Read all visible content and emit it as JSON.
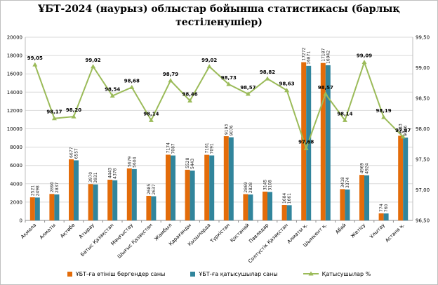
{
  "chart_data": {
    "type": "bar",
    "title_line1": "ҰБТ-2024 (наурыз) облыстар бойынша статистикасы (барлық",
    "title_line2": "тестіленушіер)",
    "categories": [
      "Ақмола",
      "Алматы",
      "Ақтөбе",
      "Атырау",
      "Батыс Қазақстан",
      "Маңғыстау",
      "Шығыс Қазақстан",
      "Жамбыл",
      "Қарағанды",
      "Қызылорда",
      "Түркістан",
      "Қостанай",
      "Павлодар",
      "Солтүстік Қазақстан",
      "Алматы қ.",
      "Шымкент қ.",
      "Абай",
      "Жетісу",
      "Ұлытау",
      "Астана қ."
    ],
    "series": [
      {
        "name": "ҰБТ-ға өтініш бергендер саны",
        "color": "#e36c0a",
        "values": [
          2521,
          2890,
          6677,
          3970,
          4443,
          5679,
          2685,
          7174,
          5528,
          7161,
          9193,
          2869,
          3145,
          1684,
          17272,
          17187,
          3418,
          4969,
          774,
          9243
        ],
        "labels": [
          "2521",
          "2890",
          "6677",
          "3970",
          "4443",
          "5679",
          "2685",
          "7174",
          "5528",
          "7161",
          "9193",
          "2869",
          "3145",
          "1684",
          "17272",
          "17187",
          "3418",
          "4969",
          "774",
          "9243"
        ]
      },
      {
        "name": "ҰБТ-ға қатысушылар саны",
        "color": "#31859c",
        "values": [
          2498,
          2837,
          6557,
          3931,
          4378,
          5604,
          2637,
          7087,
          5443,
          7091,
          9076,
          2828,
          3108,
          1661,
          16871,
          16942,
          3374,
          4924,
          760,
          9046
        ],
        "labels": [
          "2498",
          "2837",
          "6557",
          "3931",
          "4378",
          "5604",
          "2637",
          "7087",
          "5443",
          "7091",
          "9076",
          "2828",
          "3108",
          "1661",
          "16871",
          "16942",
          "3374",
          "4924",
          "760",
          "9046"
        ]
      },
      {
        "name": "Қатысушылар %",
        "color": "#9bbb59",
        "axis": "right",
        "values": [
          99.05,
          98.17,
          98.2,
          99.02,
          98.54,
          98.68,
          98.14,
          98.79,
          98.46,
          99.02,
          98.73,
          98.57,
          98.82,
          98.63,
          97.68,
          98.57,
          98.14,
          99.09,
          98.19,
          97.87
        ],
        "labels": [
          "99,05",
          "98,17",
          "98,20",
          "99,02",
          "98,54",
          "98,68",
          "98,14",
          "98,79",
          "98,46",
          "99,02",
          "98,73",
          "98,57",
          "98,82",
          "98,63",
          "97,68",
          "98,57",
          "98,14",
          "99,09",
          "98,19",
          "97,87"
        ]
      }
    ],
    "ylim_left": [
      0,
      20000
    ],
    "ylim_right": [
      96.5,
      99.5
    ],
    "yticks_left": [
      "0",
      "2000",
      "4000",
      "6000",
      "8000",
      "10000",
      "12000",
      "14000",
      "16000",
      "18000",
      "20000"
    ],
    "yticks_right": [
      "96,50",
      "97,00",
      "97,50",
      "98,00",
      "98,50",
      "99,00",
      "99,50"
    ],
    "grid": true,
    "legend_position": "bottom"
  }
}
